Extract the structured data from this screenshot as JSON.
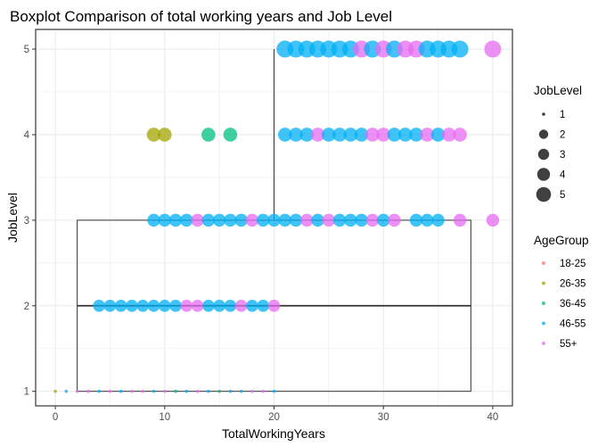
{
  "chart_data": {
    "type": "scatter",
    "title": "Boxplot Comparison of total working years and Job Level",
    "xlabel": "TotalWorkingYears",
    "ylabel": "JobLevel",
    "xlim": [
      -1.8,
      41.8
    ],
    "ylim": [
      0.83,
      5.23
    ],
    "xticks": [
      0,
      10,
      20,
      30,
      40
    ],
    "yticks": [
      1,
      2,
      3,
      4,
      5
    ],
    "grid": true,
    "size_legend": {
      "title": "JobLevel",
      "entries": [
        "1",
        "2",
        "3",
        "4",
        "5"
      ]
    },
    "color_legend": {
      "title": "AgeGroup",
      "entries": [
        {
          "label": "18-25",
          "color": "#F8766D"
        },
        {
          "label": "26-35",
          "color": "#A3A500"
        },
        {
          "label": "36-45",
          "color": "#00BF7D"
        },
        {
          "label": "46-55",
          "color": "#00B0F6"
        },
        {
          "label": "55+",
          "color": "#E76BF3"
        }
      ]
    },
    "boxplots": [
      {
        "job_level": 1,
        "x_min": 2,
        "x_max": 38,
        "y_low": 1,
        "y_high": 3,
        "median": 2,
        "whisker_x": 20,
        "whisker_top": 5
      }
    ],
    "series": [
      {
        "job_level": 1,
        "points": [
          {
            "x": 0,
            "group": "26-35"
          },
          {
            "x": 1,
            "group": "46-55"
          },
          {
            "x": 2,
            "group": "55+"
          },
          {
            "x": 3,
            "group": "55+"
          },
          {
            "x": 4,
            "group": "46-55"
          },
          {
            "x": 5,
            "group": "55+"
          },
          {
            "x": 6,
            "group": "46-55"
          },
          {
            "x": 7,
            "group": "55+"
          },
          {
            "x": 8,
            "group": "55+"
          },
          {
            "x": 9,
            "group": "46-55"
          },
          {
            "x": 10,
            "group": "55+"
          },
          {
            "x": 11,
            "group": "36-45"
          },
          {
            "x": 12,
            "group": "46-55"
          },
          {
            "x": 13,
            "group": "55+"
          },
          {
            "x": 14,
            "group": "46-55"
          },
          {
            "x": 15,
            "group": "36-45"
          },
          {
            "x": 16,
            "group": "46-55"
          },
          {
            "x": 17,
            "group": "46-55"
          },
          {
            "x": 18,
            "group": "55+"
          },
          {
            "x": 19,
            "group": "55+"
          },
          {
            "x": 20,
            "group": "46-55"
          }
        ]
      },
      {
        "job_level": 2,
        "points": [
          {
            "x": 4,
            "group": "46-55"
          },
          {
            "x": 5,
            "group": "46-55"
          },
          {
            "x": 6,
            "group": "46-55"
          },
          {
            "x": 7,
            "group": "46-55"
          },
          {
            "x": 8,
            "group": "46-55"
          },
          {
            "x": 9,
            "group": "46-55"
          },
          {
            "x": 10,
            "group": "46-55"
          },
          {
            "x": 11,
            "group": "46-55"
          },
          {
            "x": 12,
            "group": "55+"
          },
          {
            "x": 13,
            "group": "55+"
          },
          {
            "x": 14,
            "group": "46-55"
          },
          {
            "x": 15,
            "group": "46-55"
          },
          {
            "x": 16,
            "group": "46-55"
          },
          {
            "x": 17,
            "group": "55+"
          },
          {
            "x": 18,
            "group": "46-55"
          },
          {
            "x": 19,
            "group": "46-55"
          },
          {
            "x": 20,
            "group": "55+"
          }
        ]
      },
      {
        "job_level": 3,
        "points": [
          {
            "x": 9,
            "group": "46-55"
          },
          {
            "x": 10,
            "group": "46-55"
          },
          {
            "x": 11,
            "group": "46-55"
          },
          {
            "x": 12,
            "group": "46-55"
          },
          {
            "x": 13,
            "group": "55+"
          },
          {
            "x": 14,
            "group": "46-55"
          },
          {
            "x": 15,
            "group": "46-55"
          },
          {
            "x": 16,
            "group": "46-55"
          },
          {
            "x": 17,
            "group": "46-55"
          },
          {
            "x": 18,
            "group": "55+"
          },
          {
            "x": 19,
            "group": "46-55"
          },
          {
            "x": 20,
            "group": "46-55"
          },
          {
            "x": 21,
            "group": "46-55"
          },
          {
            "x": 22,
            "group": "46-55"
          },
          {
            "x": 23,
            "group": "55+"
          },
          {
            "x": 24,
            "group": "46-55"
          },
          {
            "x": 25,
            "group": "55+"
          },
          {
            "x": 26,
            "group": "46-55"
          },
          {
            "x": 27,
            "group": "46-55"
          },
          {
            "x": 28,
            "group": "46-55"
          },
          {
            "x": 29,
            "group": "55+"
          },
          {
            "x": 30,
            "group": "46-55"
          },
          {
            "x": 31,
            "group": "55+"
          },
          {
            "x": 33,
            "group": "46-55"
          },
          {
            "x": 34,
            "group": "46-55"
          },
          {
            "x": 35,
            "group": "46-55"
          },
          {
            "x": 37,
            "group": "55+"
          },
          {
            "x": 40,
            "group": "55+"
          }
        ]
      },
      {
        "job_level": 4,
        "points": [
          {
            "x": 9,
            "group": "26-35"
          },
          {
            "x": 10,
            "group": "26-35"
          },
          {
            "x": 14,
            "group": "36-45"
          },
          {
            "x": 16,
            "group": "36-45"
          },
          {
            "x": 21,
            "group": "46-55"
          },
          {
            "x": 22,
            "group": "46-55"
          },
          {
            "x": 23,
            "group": "46-55"
          },
          {
            "x": 24,
            "group": "55+"
          },
          {
            "x": 25,
            "group": "46-55"
          },
          {
            "x": 26,
            "group": "46-55"
          },
          {
            "x": 27,
            "group": "46-55"
          },
          {
            "x": 28,
            "group": "46-55"
          },
          {
            "x": 29,
            "group": "55+"
          },
          {
            "x": 30,
            "group": "55+"
          },
          {
            "x": 31,
            "group": "46-55"
          },
          {
            "x": 32,
            "group": "46-55"
          },
          {
            "x": 33,
            "group": "46-55"
          },
          {
            "x": 34,
            "group": "55+"
          },
          {
            "x": 35,
            "group": "46-55"
          },
          {
            "x": 36,
            "group": "55+"
          },
          {
            "x": 37,
            "group": "55+"
          }
        ]
      },
      {
        "job_level": 5,
        "points": [
          {
            "x": 21,
            "group": "46-55"
          },
          {
            "x": 22,
            "group": "46-55"
          },
          {
            "x": 23,
            "group": "46-55"
          },
          {
            "x": 24,
            "group": "46-55"
          },
          {
            "x": 25,
            "group": "46-55"
          },
          {
            "x": 26,
            "group": "46-55"
          },
          {
            "x": 27,
            "group": "46-55"
          },
          {
            "x": 28,
            "group": "55+"
          },
          {
            "x": 29,
            "group": "46-55"
          },
          {
            "x": 30,
            "group": "55+"
          },
          {
            "x": 31,
            "group": "46-55"
          },
          {
            "x": 32,
            "group": "55+"
          },
          {
            "x": 33,
            "group": "55+"
          },
          {
            "x": 34,
            "group": "46-55"
          },
          {
            "x": 35,
            "group": "46-55"
          },
          {
            "x": 36,
            "group": "46-55"
          },
          {
            "x": 37,
            "group": "46-55"
          },
          {
            "x": 40,
            "group": "55+"
          }
        ]
      }
    ]
  }
}
